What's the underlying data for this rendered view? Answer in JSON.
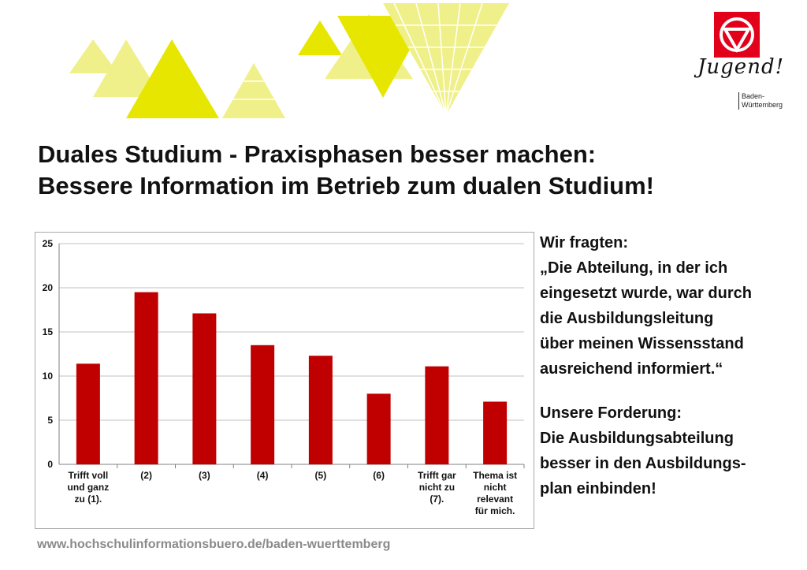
{
  "header": {
    "title_line1": "Duales Studium - Praxisphasen besser machen:",
    "title_line2": "Bessere Information im Betrieb zum dualen Studium!"
  },
  "logo": {
    "brand_color": "#e2001a",
    "script_text": "Jugend!",
    "region_line1": "Baden-",
    "region_line2": "Württemberg"
  },
  "sidebar": {
    "lines": [
      "Wir fragten:",
      "„Die Abteilung, in der ich",
      "eingesetzt wurde, war durch",
      "die Ausbildungsleitung",
      "über meinen Wissensstand",
      "ausreichend informiert.“"
    ],
    "demand_lines": [
      "Unsere Forderung:",
      "Die Ausbildungsabteilung",
      "besser in den Ausbildungs-",
      "plan einbinden!"
    ]
  },
  "footer": {
    "url": "www.hochschulinformationsbuero.de/baden-wuerttemberg"
  },
  "colors": {
    "bar": "#c00000",
    "decoration": "#e6e600",
    "decoration_light": "#f0f08a",
    "grid": "#c0c0c0"
  },
  "chart_data": {
    "type": "bar",
    "categories": [
      [
        "Trifft voll",
        "und ganz",
        "zu (1)."
      ],
      [
        "(2)"
      ],
      [
        "(3)"
      ],
      [
        "(4)"
      ],
      [
        "(5)"
      ],
      [
        "(6)"
      ],
      [
        "Trifft gar",
        "nicht zu",
        "(7)."
      ],
      [
        "Thema ist",
        "nicht",
        "relevant",
        "für mich."
      ]
    ],
    "values": [
      11.4,
      19.5,
      17.1,
      13.5,
      12.3,
      8.0,
      11.1,
      7.1
    ],
    "yticks": [
      0,
      5,
      10,
      15,
      20,
      25
    ],
    "ylim": [
      0,
      25
    ],
    "grid": true,
    "legend": "none"
  }
}
